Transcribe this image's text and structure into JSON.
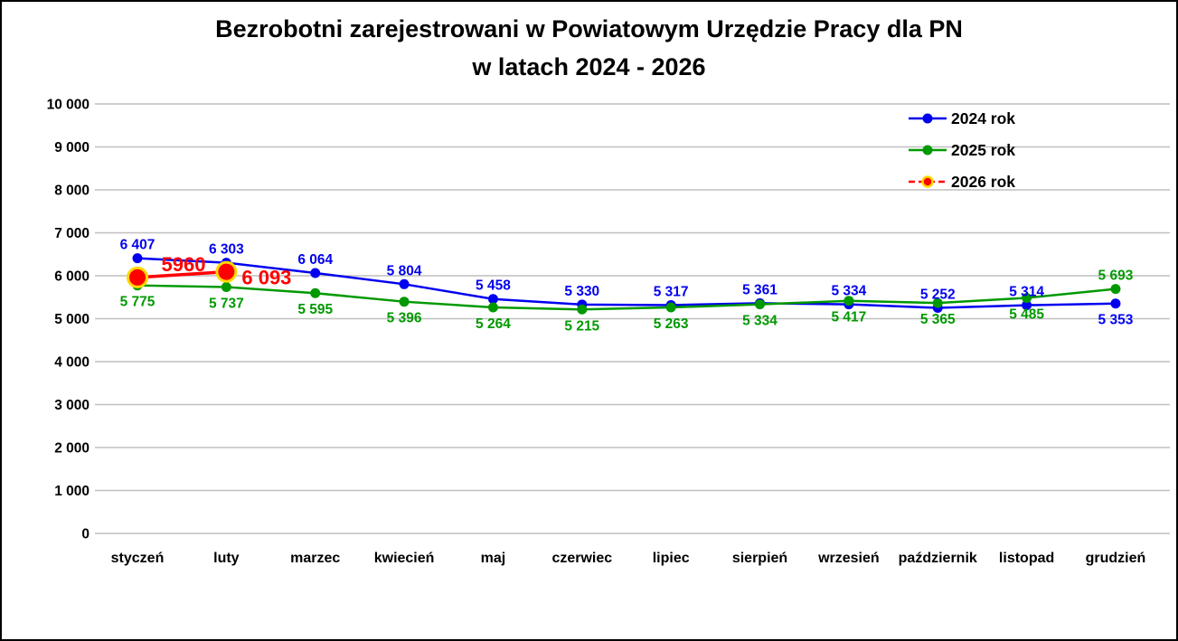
{
  "chart_data": {
    "type": "line",
    "title": "Bezrobotni zarejestrowani w Powiatowym Urzędzie Pracy dla PN",
    "title_line2": "w latach 2024 - 2026",
    "categories": [
      "styczeń",
      "luty",
      "marzec",
      "kwiecień",
      "maj",
      "czerwiec",
      "lipiec",
      "sierpień",
      "wrzesień",
      "październik",
      "listopad",
      "grudzień"
    ],
    "xlabel": "",
    "ylabel": "",
    "ylim": [
      0,
      10000
    ],
    "y_axis": {
      "min": 0,
      "max": 10000,
      "step": 1000,
      "tick_labels": [
        "0",
        "1 000",
        "2 000",
        "3 000",
        "4 000",
        "5 000",
        "6 000",
        "7 000",
        "8 000",
        "9 000",
        "10 000"
      ],
      "grid": true,
      "grid_color": "#BFBFBF"
    },
    "legend": {
      "position": "top-right",
      "entries": [
        {
          "label": "2024 rok",
          "color": "#0000F0",
          "style": "solid"
        },
        {
          "label": "2025 rok",
          "color": "#009900",
          "style": "solid"
        },
        {
          "label": "2026 rok",
          "color": "#FF0000",
          "marker_ring": "#FFD800",
          "style": "dashed"
        }
      ]
    },
    "series": [
      {
        "name": "2024 rok",
        "color": "#0000F0",
        "marker": "circle",
        "values": [
          6407,
          6303,
          6064,
          5804,
          5458,
          5330,
          5317,
          5361,
          5334,
          5252,
          5314,
          5353
        ],
        "labels": [
          "6 407",
          "6 303",
          "6 064",
          "5 804",
          "5 458",
          "5 330",
          "5 317",
          "5 361",
          "5 334",
          "5 252",
          "5 314",
          "5 353"
        ],
        "label_side": [
          "above",
          "above",
          "above",
          "above",
          "above",
          "above",
          "above",
          "above",
          "above",
          "above",
          "above",
          "below"
        ]
      },
      {
        "name": "2025 rok",
        "color": "#009900",
        "marker": "circle",
        "values": [
          5775,
          5737,
          5595,
          5396,
          5264,
          5215,
          5263,
          5334,
          5417,
          5365,
          5485,
          5693
        ],
        "labels": [
          "5 775",
          "5 737",
          "5 595",
          "5 396",
          "5 264",
          "5 215",
          "5 263",
          "5 334",
          "5 417",
          "5 365",
          "5 485",
          "5 693"
        ],
        "label_side": [
          "below",
          "below",
          "below",
          "below",
          "below",
          "below",
          "below",
          "below",
          "below",
          "below",
          "below",
          "above"
        ]
      },
      {
        "name": "2026 rok",
        "color": "#FF0000",
        "marker": "big-circle",
        "marker_ring": "#FFD800",
        "values": [
          5960,
          6093,
          null,
          null,
          null,
          null,
          null,
          null,
          null,
          null,
          null,
          null
        ],
        "labels": [
          "5960",
          "6 093"
        ],
        "label_placement": [
          "mid-line",
          "right-of-point"
        ]
      }
    ]
  }
}
